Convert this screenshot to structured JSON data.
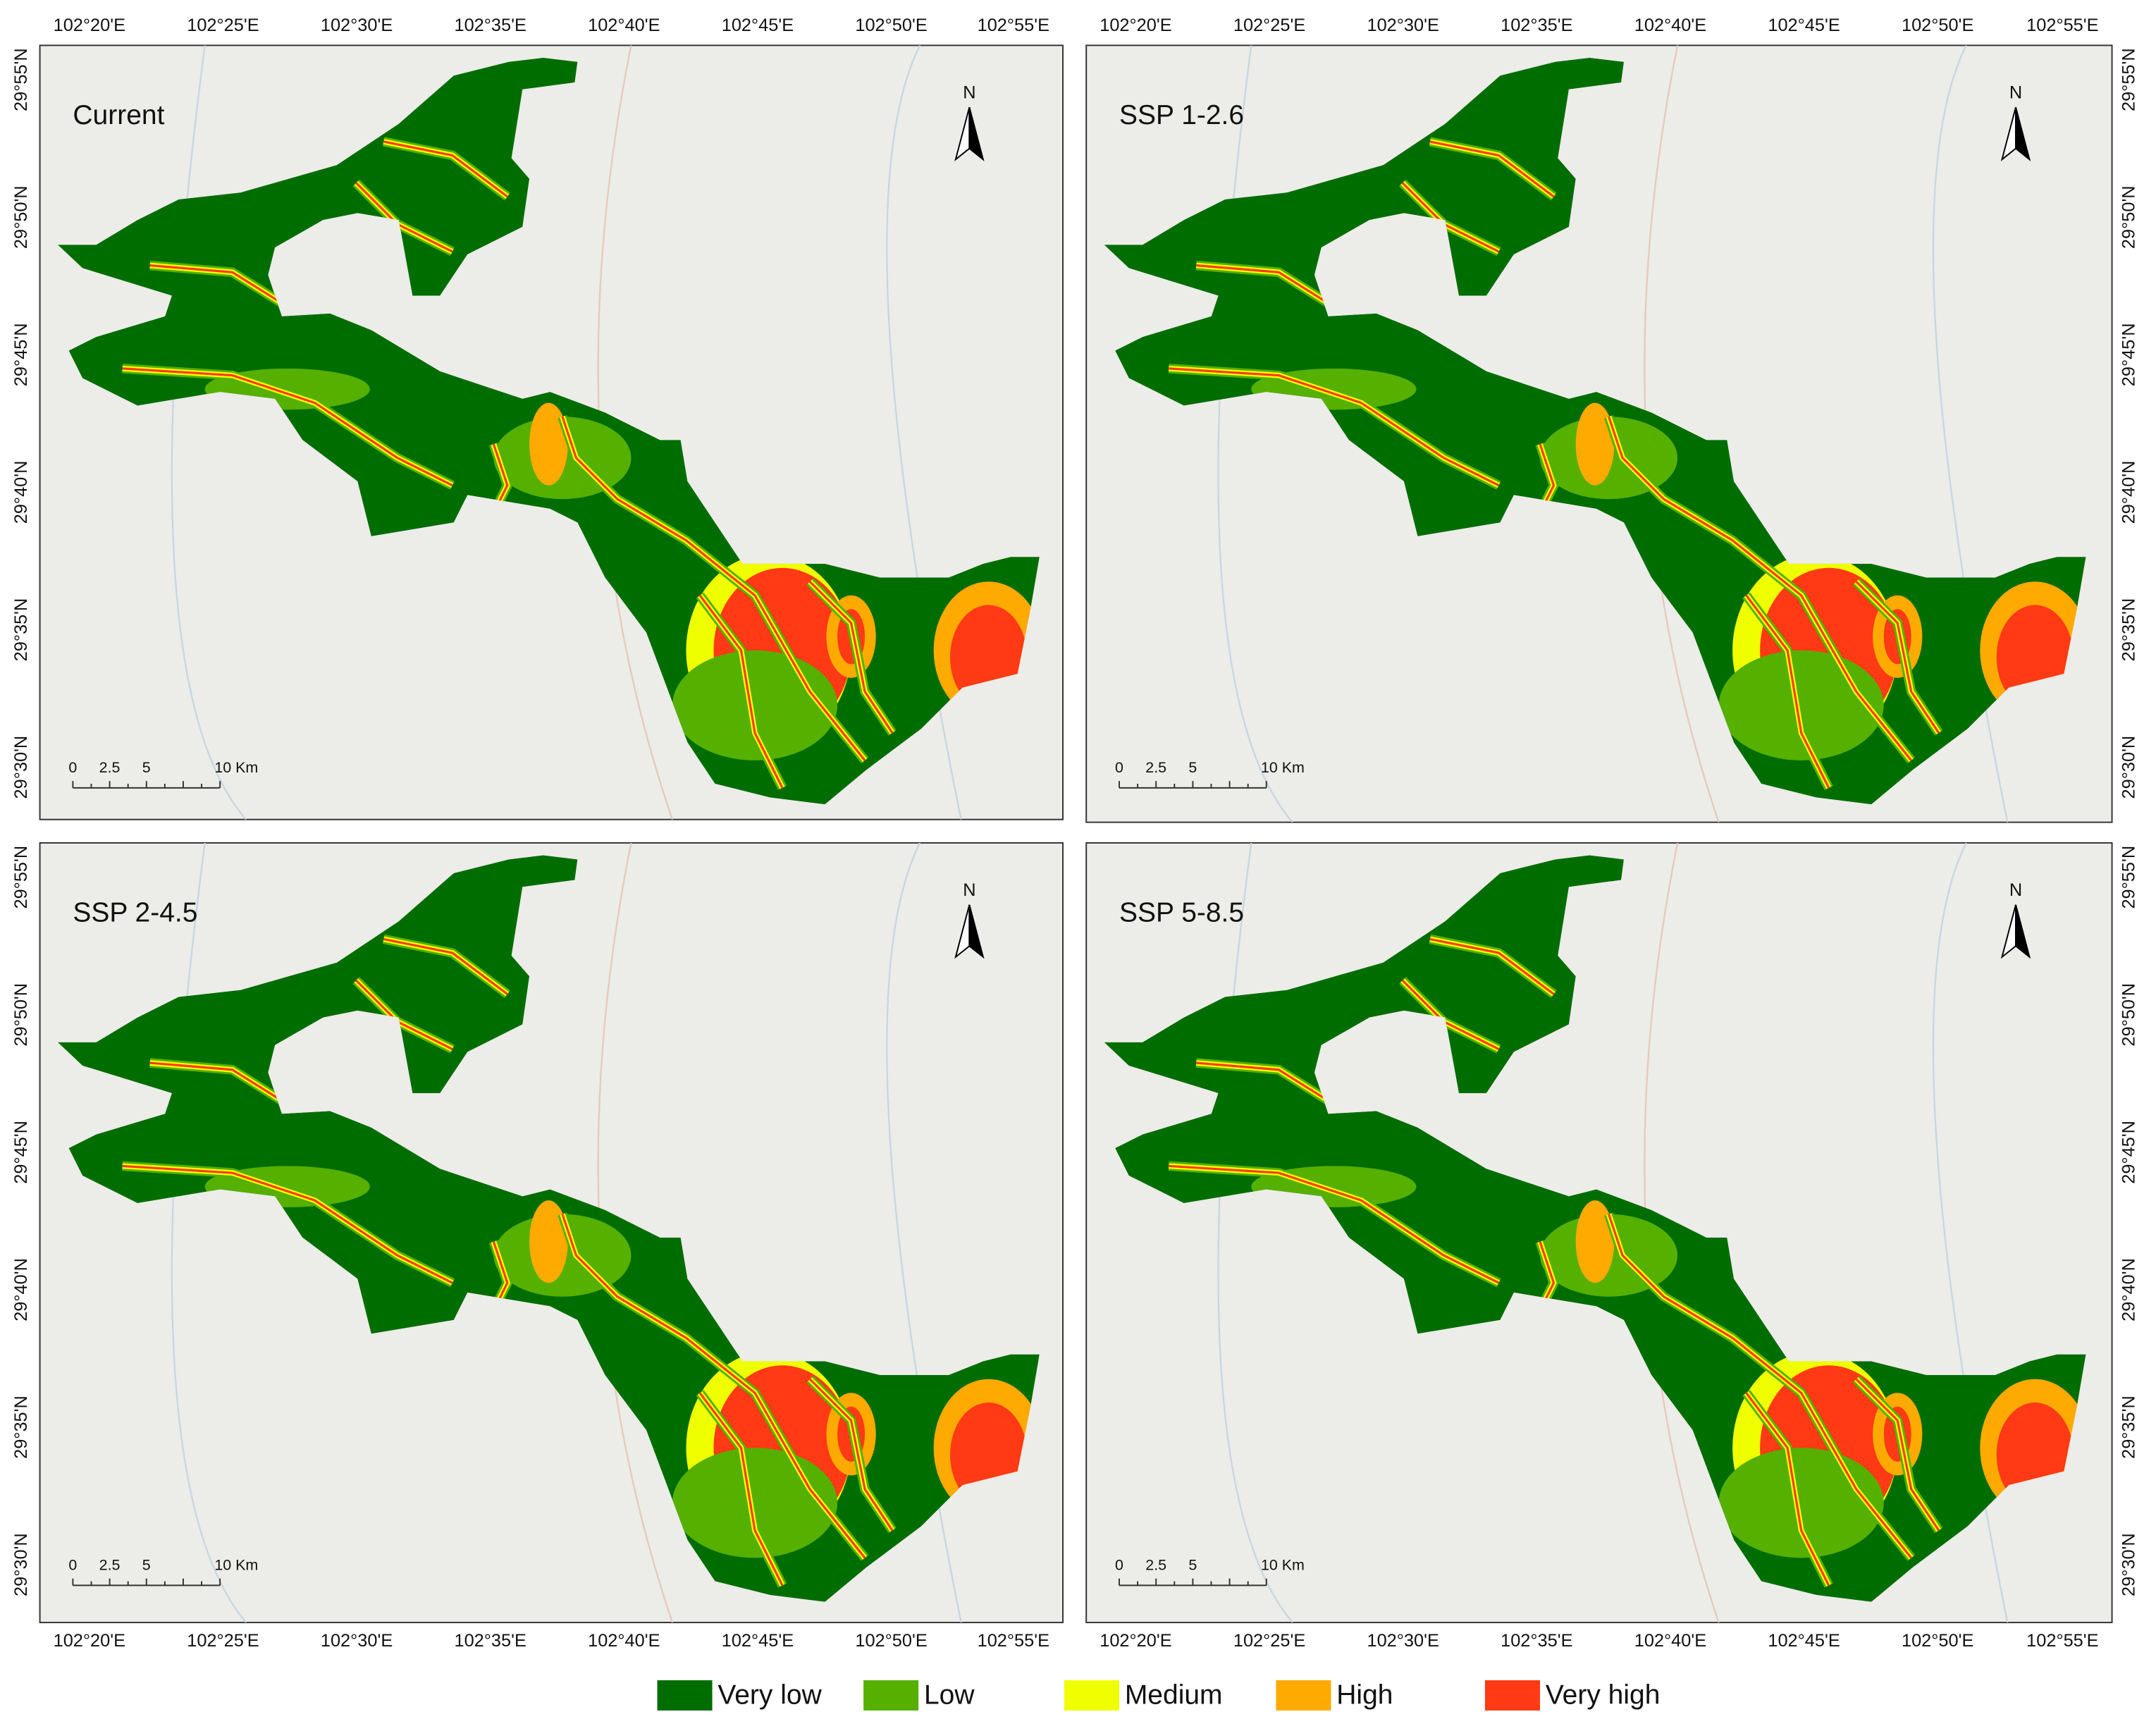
{
  "panels": [
    {
      "title": "Current"
    },
    {
      "title": "SSP 1-2.6"
    },
    {
      "title": "SSP 2-4.5"
    },
    {
      "title": "SSP 5-8.5"
    }
  ],
  "lon_ticks": [
    "102°20'E",
    "102°25'E",
    "102°30'E",
    "102°35'E",
    "102°40'E",
    "102°45'E",
    "102°50'E",
    "102°55'E"
  ],
  "lat_ticks": [
    "29°55'N",
    "29°50'N",
    "29°45'N",
    "29°40'N",
    "29°35'N",
    "29°30'N"
  ],
  "scale_bar": [
    "0",
    "2.5",
    "5",
    "10 Km"
  ],
  "north": "N",
  "legend": [
    {
      "label": "Very low",
      "color": "#006d00"
    },
    {
      "label": "Low",
      "color": "#55b000"
    },
    {
      "label": "Medium",
      "color": "#f0ff00"
    },
    {
      "label": "High",
      "color": "#ffaa00"
    },
    {
      "label": "Very high",
      "color": "#ff3a14"
    }
  ]
}
